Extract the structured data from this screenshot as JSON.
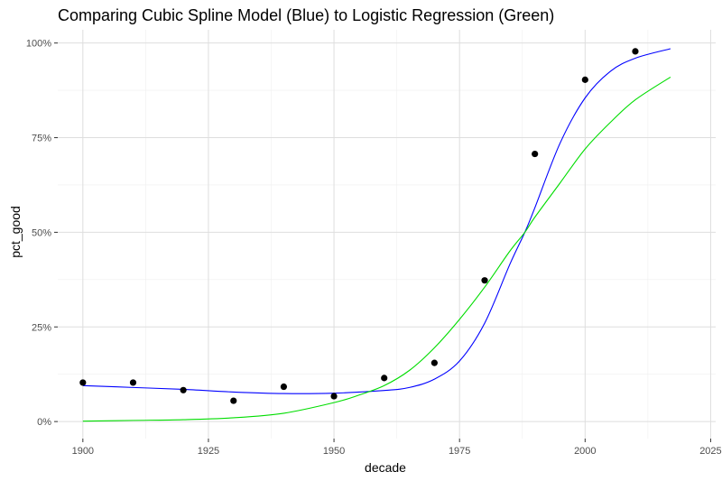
{
  "chart_data": {
    "type": "scatter",
    "title": "Comparing Cubic Spline Model (Blue) to Logistic Regression (Green)",
    "xlabel": "decade",
    "ylabel": "pct_good",
    "xlim": [
      1895,
      2026
    ],
    "ylim": [
      -0.045,
      1.035
    ],
    "x_ticks": [
      1900,
      1925,
      1950,
      1975,
      2000,
      2025
    ],
    "y_ticks": [
      0,
      0.25,
      0.5,
      0.75,
      1.0
    ],
    "y_tick_labels": [
      "0%",
      "25%",
      "50%",
      "75%",
      "100%"
    ],
    "grid": true,
    "points": {
      "color": "#000000",
      "x": [
        1900,
        1910,
        1920,
        1930,
        1940,
        1950,
        1960,
        1970,
        1980,
        1990,
        2000,
        2010
      ],
      "y": [
        0.103,
        0.103,
        0.083,
        0.055,
        0.092,
        0.067,
        0.115,
        0.155,
        0.373,
        0.707,
        0.903,
        0.978
      ]
    },
    "series": [
      {
        "color": "#0000ff",
        "x": [
          1900,
          1910,
          1920,
          1930,
          1940,
          1950,
          1960,
          1965,
          1970,
          1975,
          1980,
          1985,
          1988,
          1990,
          1995,
          2000,
          2005,
          2010,
          2017
        ],
        "y": [
          0.095,
          0.09,
          0.085,
          0.078,
          0.074,
          0.075,
          0.082,
          0.09,
          0.112,
          0.16,
          0.26,
          0.415,
          0.5,
          0.565,
          0.735,
          0.855,
          0.925,
          0.96,
          0.985
        ]
      },
      {
        "color": "#00dd00",
        "x": [
          1900,
          1910,
          1920,
          1930,
          1940,
          1950,
          1955,
          1960,
          1965,
          1970,
          1975,
          1980,
          1985,
          1988,
          1990,
          1995,
          2000,
          2005,
          2010,
          2017
        ],
        "y": [
          0.001,
          0.003,
          0.005,
          0.01,
          0.022,
          0.05,
          0.07,
          0.095,
          0.135,
          0.195,
          0.27,
          0.355,
          0.45,
          0.5,
          0.54,
          0.63,
          0.72,
          0.79,
          0.85,
          0.91
        ]
      }
    ]
  }
}
